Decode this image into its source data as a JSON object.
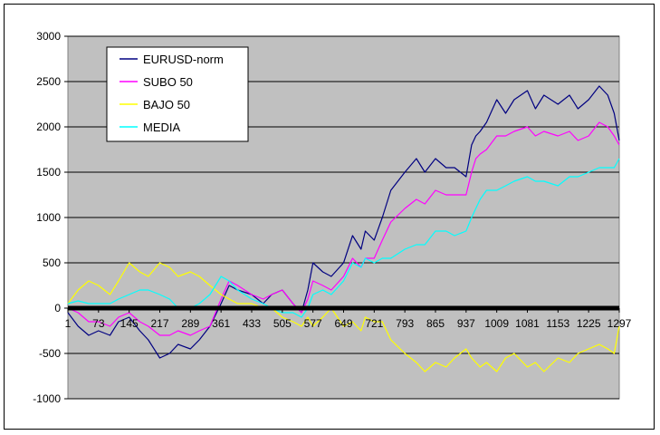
{
  "chart_data": {
    "type": "line",
    "title": "",
    "xlabel": "",
    "ylabel": "",
    "ylim": [
      -1000,
      3000
    ],
    "xlim": [
      1,
      1297
    ],
    "yticks": [
      3000,
      2500,
      2000,
      1500,
      1000,
      500,
      0,
      -500,
      -1000
    ],
    "yticklabels": [
      "3000",
      "2500",
      "2000",
      "1500",
      "1000",
      "500",
      "0",
      "-500",
      "-1000"
    ],
    "xticks": [
      1,
      73,
      145,
      217,
      289,
      361,
      433,
      505,
      577,
      649,
      721,
      793,
      865,
      937,
      1009,
      1081,
      1153,
      1225,
      1297
    ],
    "xticklabels": [
      "1",
      "73",
      "145",
      "217",
      "289",
      "361",
      "433",
      "505",
      "577",
      "649",
      "721",
      "793",
      "865",
      "937",
      "1009",
      "1081",
      "1153",
      "1225",
      "1297"
    ],
    "grid": true,
    "plot_background": "#c0c0c0",
    "legend_position": "top-left",
    "series": [
      {
        "name": "EURUSD-norm",
        "color": "#000080",
        "x": [
          1,
          25,
          50,
          73,
          100,
          120,
          145,
          170,
          190,
          217,
          240,
          260,
          289,
          310,
          335,
          361,
          380,
          400,
          433,
          460,
          480,
          505,
          530,
          550,
          565,
          577,
          600,
          620,
          649,
          670,
          690,
          700,
          721,
          740,
          760,
          793,
          820,
          840,
          865,
          890,
          910,
          937,
          950,
          960,
          970,
          985,
          1009,
          1030,
          1050,
          1081,
          1100,
          1120,
          1153,
          1180,
          1200,
          1225,
          1250,
          1270,
          1285,
          1297
        ],
        "y": [
          -50,
          -200,
          -300,
          -250,
          -300,
          -150,
          -100,
          -250,
          -350,
          -550,
          -500,
          -400,
          -450,
          -350,
          -200,
          50,
          250,
          200,
          150,
          50,
          150,
          200,
          50,
          -50,
          200,
          500,
          400,
          350,
          500,
          800,
          650,
          850,
          750,
          1000,
          1300,
          1500,
          1650,
          1500,
          1650,
          1550,
          1550,
          1450,
          1800,
          1900,
          1950,
          2050,
          2300,
          2150,
          2300,
          2400,
          2200,
          2350,
          2250,
          2350,
          2200,
          2300,
          2450,
          2350,
          2150,
          1850
        ]
      },
      {
        "name": "SUBO 50",
        "color": "#ff00ff",
        "x": [
          1,
          25,
          50,
          73,
          100,
          120,
          145,
          170,
          190,
          217,
          240,
          260,
          289,
          310,
          335,
          361,
          380,
          400,
          433,
          460,
          480,
          505,
          530,
          550,
          565,
          577,
          600,
          620,
          649,
          670,
          690,
          700,
          721,
          740,
          760,
          793,
          820,
          840,
          865,
          890,
          910,
          937,
          950,
          960,
          970,
          985,
          1009,
          1030,
          1050,
          1081,
          1100,
          1120,
          1153,
          1180,
          1200,
          1225,
          1250,
          1270,
          1285,
          1297
        ],
        "y": [
          0,
          -50,
          -150,
          -150,
          -200,
          -100,
          -50,
          -150,
          -200,
          -300,
          -300,
          -250,
          -300,
          -250,
          -200,
          100,
          300,
          250,
          150,
          100,
          150,
          200,
          50,
          -50,
          100,
          300,
          250,
          200,
          350,
          550,
          450,
          550,
          550,
          750,
          950,
          1100,
          1200,
          1150,
          1300,
          1250,
          1250,
          1250,
          1500,
          1650,
          1700,
          1750,
          1900,
          1900,
          1950,
          2000,
          1900,
          1950,
          1900,
          1950,
          1850,
          1900,
          2050,
          2000,
          1900,
          1800
        ]
      },
      {
        "name": "BAJO 50",
        "color": "#ffff00",
        "x": [
          1,
          25,
          50,
          73,
          100,
          120,
          145,
          170,
          190,
          217,
          240,
          260,
          289,
          310,
          335,
          361,
          380,
          400,
          433,
          460,
          480,
          505,
          530,
          550,
          565,
          577,
          600,
          620,
          649,
          670,
          690,
          700,
          721,
          740,
          760,
          793,
          820,
          840,
          865,
          890,
          910,
          937,
          950,
          960,
          970,
          985,
          1009,
          1030,
          1050,
          1081,
          1100,
          1120,
          1153,
          1180,
          1200,
          1225,
          1250,
          1270,
          1285,
          1297
        ],
        "y": [
          50,
          200,
          300,
          250,
          150,
          300,
          500,
          400,
          350,
          500,
          450,
          350,
          400,
          350,
          250,
          150,
          100,
          50,
          50,
          0,
          0,
          -100,
          -150,
          -200,
          -100,
          -200,
          -100,
          0,
          -200,
          -150,
          -250,
          -100,
          -150,
          -150,
          -350,
          -500,
          -600,
          -700,
          -600,
          -650,
          -550,
          -450,
          -550,
          -600,
          -650,
          -600,
          -700,
          -550,
          -500,
          -650,
          -600,
          -700,
          -550,
          -600,
          -500,
          -450,
          -400,
          -450,
          -500,
          -200
        ]
      },
      {
        "name": "MEDIA",
        "color": "#00ffff",
        "x": [
          1,
          25,
          50,
          73,
          100,
          120,
          145,
          170,
          190,
          217,
          240,
          260,
          289,
          310,
          335,
          361,
          380,
          400,
          433,
          460,
          480,
          505,
          530,
          550,
          565,
          577,
          600,
          620,
          649,
          670,
          690,
          700,
          721,
          740,
          760,
          793,
          820,
          840,
          865,
          890,
          910,
          937,
          950,
          960,
          970,
          985,
          1009,
          1030,
          1050,
          1081,
          1100,
          1120,
          1153,
          1180,
          1200,
          1225,
          1250,
          1270,
          1285,
          1297
        ],
        "y": [
          50,
          80,
          50,
          50,
          50,
          100,
          150,
          200,
          200,
          150,
          100,
          0,
          0,
          50,
          150,
          350,
          300,
          200,
          100,
          50,
          0,
          -50,
          -50,
          -100,
          0,
          150,
          200,
          150,
          300,
          500,
          450,
          550,
          500,
          550,
          550,
          650,
          700,
          700,
          850,
          850,
          800,
          850,
          1000,
          1100,
          1200,
          1300,
          1300,
          1350,
          1400,
          1450,
          1400,
          1400,
          1350,
          1450,
          1450,
          1500,
          1550,
          1550,
          1550,
          1650
        ]
      }
    ]
  }
}
